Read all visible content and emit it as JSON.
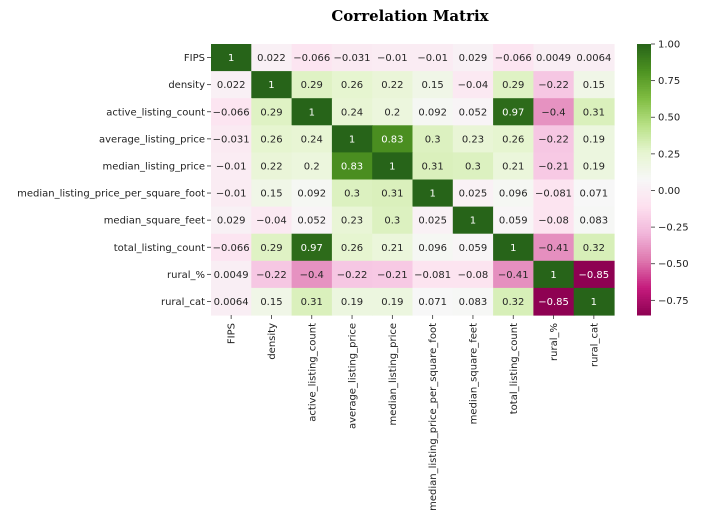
{
  "chart_data": {
    "type": "heatmap",
    "title": "Correlation Matrix",
    "labels": [
      "FIPS",
      "density",
      "active_listing_count",
      "average_listing_price",
      "median_listing_price",
      "median_listing_price_per_square_foot",
      "median_square_feet",
      "total_listing_count",
      "rural_%",
      "rural_cat"
    ],
    "matrix": [
      [
        1,
        0.022,
        -0.066,
        -0.031,
        -0.01,
        -0.01,
        0.029,
        -0.066,
        0.0049,
        0.0064
      ],
      [
        0.022,
        1,
        0.29,
        0.26,
        0.22,
        0.15,
        -0.04,
        0.29,
        -0.22,
        0.15
      ],
      [
        -0.066,
        0.29,
        1,
        0.24,
        0.2,
        0.092,
        0.052,
        0.97,
        -0.4,
        0.31
      ],
      [
        -0.031,
        0.26,
        0.24,
        1,
        0.83,
        0.3,
        0.23,
        0.26,
        -0.22,
        0.19
      ],
      [
        -0.01,
        0.22,
        0.2,
        0.83,
        1,
        0.31,
        0.3,
        0.21,
        -0.21,
        0.19
      ],
      [
        -0.01,
        0.15,
        0.092,
        0.3,
        0.31,
        1,
        0.025,
        0.096,
        -0.081,
        0.071
      ],
      [
        0.029,
        -0.04,
        0.052,
        0.23,
        0.3,
        0.025,
        1,
        0.059,
        -0.08,
        0.083
      ],
      [
        -0.066,
        0.29,
        0.97,
        0.26,
        0.21,
        0.096,
        0.059,
        1,
        -0.41,
        0.32
      ],
      [
        0.0049,
        -0.22,
        -0.4,
        -0.22,
        -0.21,
        -0.081,
        -0.08,
        -0.41,
        1,
        -0.85
      ],
      [
        0.0064,
        0.15,
        0.31,
        0.19,
        0.19,
        0.071,
        0.083,
        0.32,
        -0.85,
        1
      ]
    ],
    "colormap": "PiYG",
    "vmin": -0.85,
    "vmax": 1.0,
    "colorbar_ticks": [
      1.0,
      0.75,
      0.5,
      0.25,
      0.0,
      -0.25,
      -0.5,
      -0.75
    ],
    "colorbar_tick_labels": [
      "1.00",
      "0.75",
      "0.50",
      "0.25",
      "0.00",
      "−0.25",
      "−0.50",
      "−0.75"
    ],
    "annotated": true,
    "grid": false
  }
}
